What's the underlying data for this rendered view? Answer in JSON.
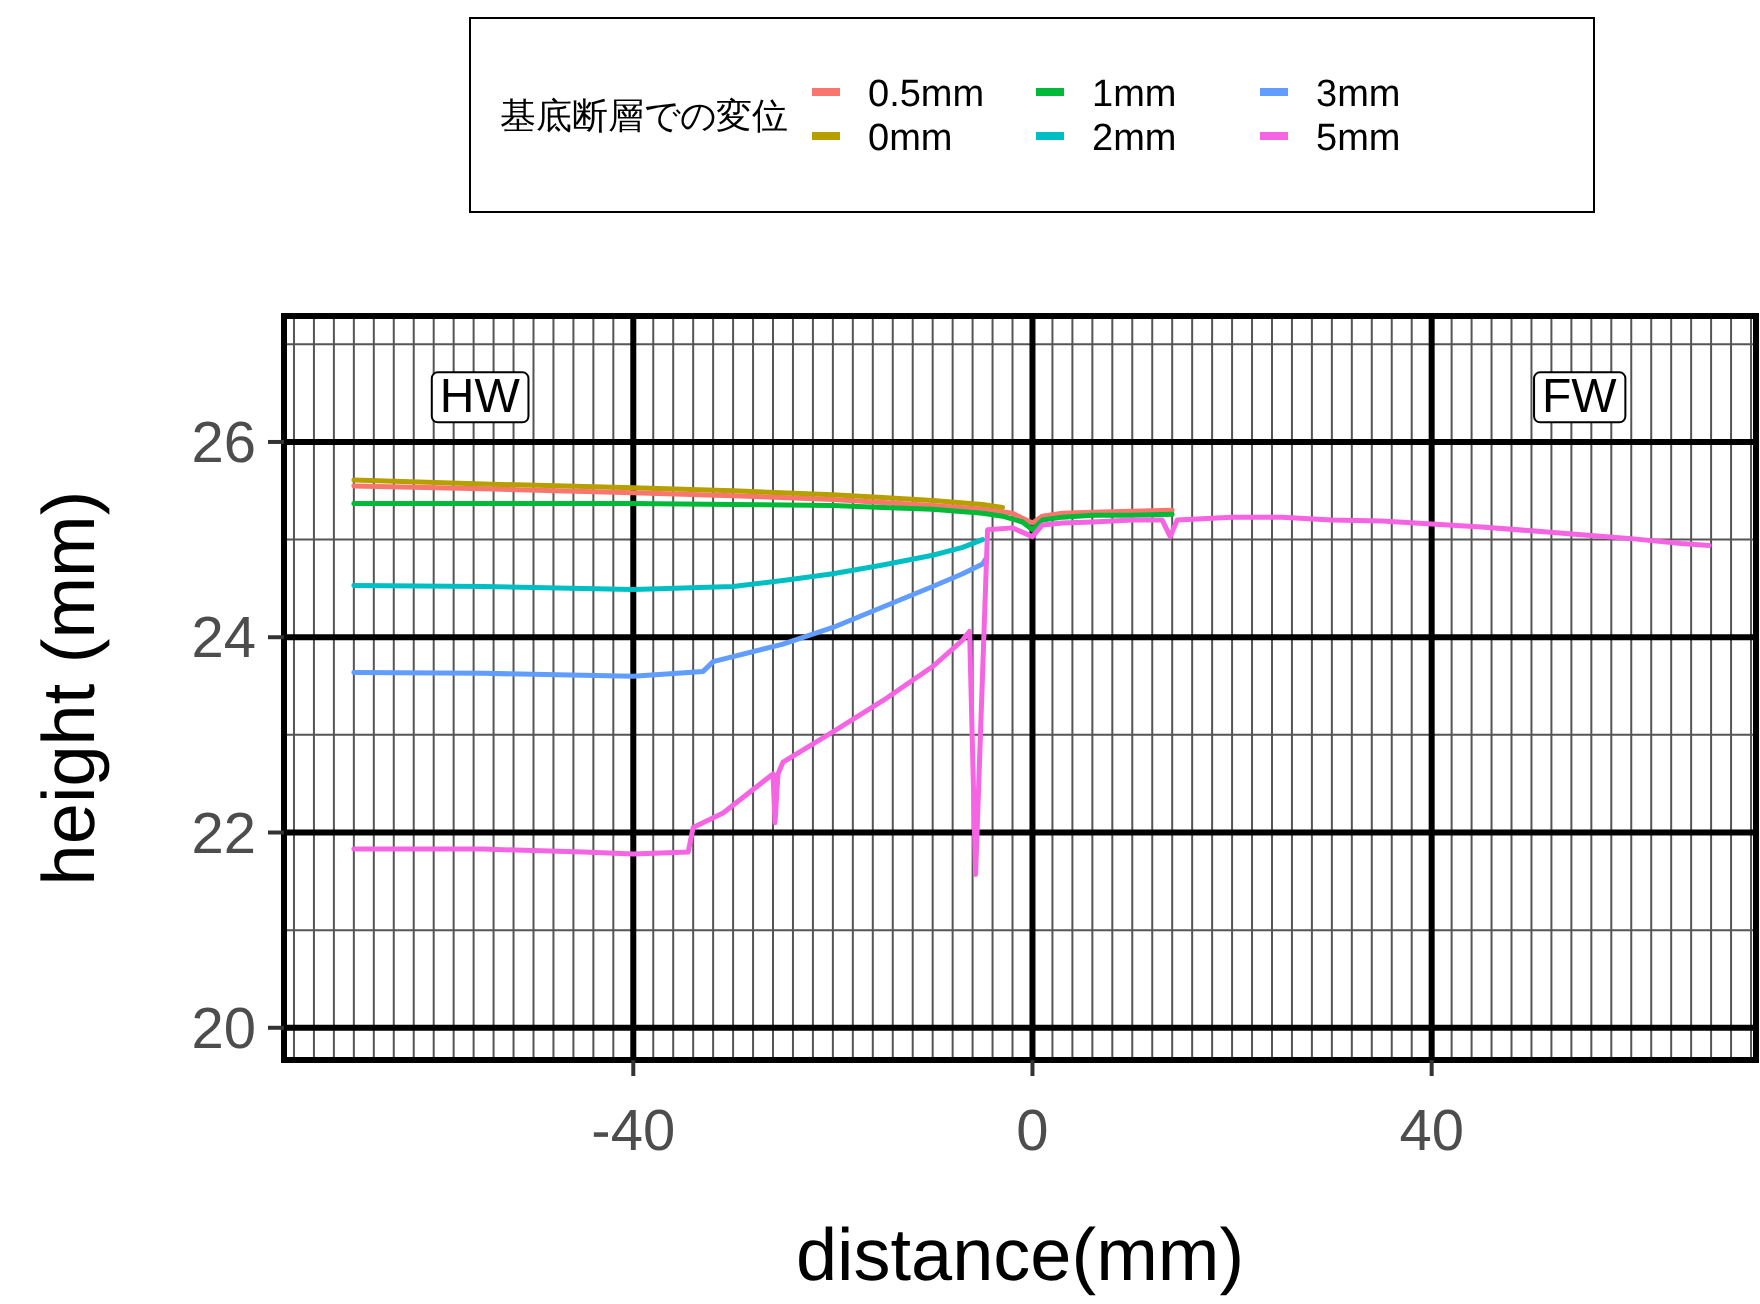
{
  "chart_data": {
    "type": "line",
    "xlabel": "distance(mm)",
    "ylabel": "height (mm)",
    "legend_title": "基底断層での変位",
    "legend": "top",
    "grid": true,
    "xlim": [
      -75,
      72.5
    ],
    "ylim": [
      19.67,
      27.29
    ],
    "xticks": [
      -40,
      0,
      40
    ],
    "yticks": [
      20,
      22,
      24,
      26
    ],
    "annotations": [
      "HW",
      "FW"
    ],
    "series": [
      {
        "name": "0.5mm",
        "color": "#F8766D",
        "x": [
          -68,
          -55,
          -40,
          -30,
          -20,
          -15,
          -10,
          -5,
          -2,
          -1,
          0,
          1,
          3,
          6,
          10,
          14
        ],
        "values": [
          25.55,
          25.52,
          25.48,
          25.45,
          25.41,
          25.38,
          25.35,
          25.31,
          25.27,
          25.22,
          25.17,
          25.24,
          25.27,
          25.28,
          25.29,
          25.3
        ]
      },
      {
        "name": "0mm",
        "color": "#B79F00",
        "x": [
          -68,
          -55,
          -40,
          -30,
          -20,
          -15,
          -10,
          -5,
          -3
        ],
        "values": [
          25.61,
          25.57,
          25.53,
          25.5,
          25.46,
          25.43,
          25.4,
          25.36,
          25.33
        ]
      },
      {
        "name": "1mm",
        "color": "#00BA38",
        "x": [
          -68,
          -55,
          -40,
          -30,
          -20,
          -15,
          -10,
          -5,
          -3,
          -1,
          0,
          1,
          3,
          6,
          10,
          14
        ],
        "values": [
          25.37,
          25.37,
          25.37,
          25.36,
          25.35,
          25.33,
          25.31,
          25.27,
          25.24,
          25.18,
          25.1,
          25.2,
          25.23,
          25.25,
          25.25,
          25.26
        ]
      },
      {
        "name": "2mm",
        "color": "#00BFC4",
        "x": [
          -68,
          -55,
          -40,
          -30,
          -25,
          -20,
          -15,
          -10,
          -7,
          -5
        ],
        "values": [
          24.53,
          24.52,
          24.49,
          24.52,
          24.58,
          24.65,
          24.74,
          24.84,
          24.92,
          25.0
        ]
      },
      {
        "name": "3mm",
        "color": "#619CFF",
        "x": [
          -68,
          -55,
          -40,
          -33,
          -32,
          -25,
          -20,
          -15,
          -10,
          -7,
          -5,
          -4.7
        ],
        "values": [
          23.64,
          23.63,
          23.6,
          23.65,
          23.75,
          23.93,
          24.1,
          24.31,
          24.52,
          24.65,
          24.75,
          24.8
        ]
      },
      {
        "name": "5mm",
        "color": "#F564E3",
        "x": [
          -68,
          -55,
          -45,
          -40,
          -34.5,
          -34,
          -31,
          -26,
          -25.8,
          -25.5,
          -25,
          -20,
          -15,
          -10,
          -7,
          -6.3,
          -5.7,
          -4.5,
          -2,
          0,
          1,
          3,
          6,
          10,
          13,
          13.8,
          14.5,
          20,
          25,
          30,
          35,
          40,
          45,
          50,
          55,
          60,
          65,
          67.8
        ],
        "values": [
          21.83,
          21.83,
          21.8,
          21.78,
          21.8,
          22.05,
          22.2,
          22.6,
          22.1,
          22.6,
          22.72,
          23.03,
          23.35,
          23.7,
          23.97,
          24.06,
          21.57,
          25.1,
          25.12,
          25.03,
          25.15,
          25.17,
          25.18,
          25.2,
          25.2,
          25.03,
          25.2,
          25.23,
          25.23,
          25.2,
          25.19,
          25.16,
          25.13,
          25.09,
          25.05,
          25.01,
          24.96,
          24.94
        ]
      }
    ]
  }
}
